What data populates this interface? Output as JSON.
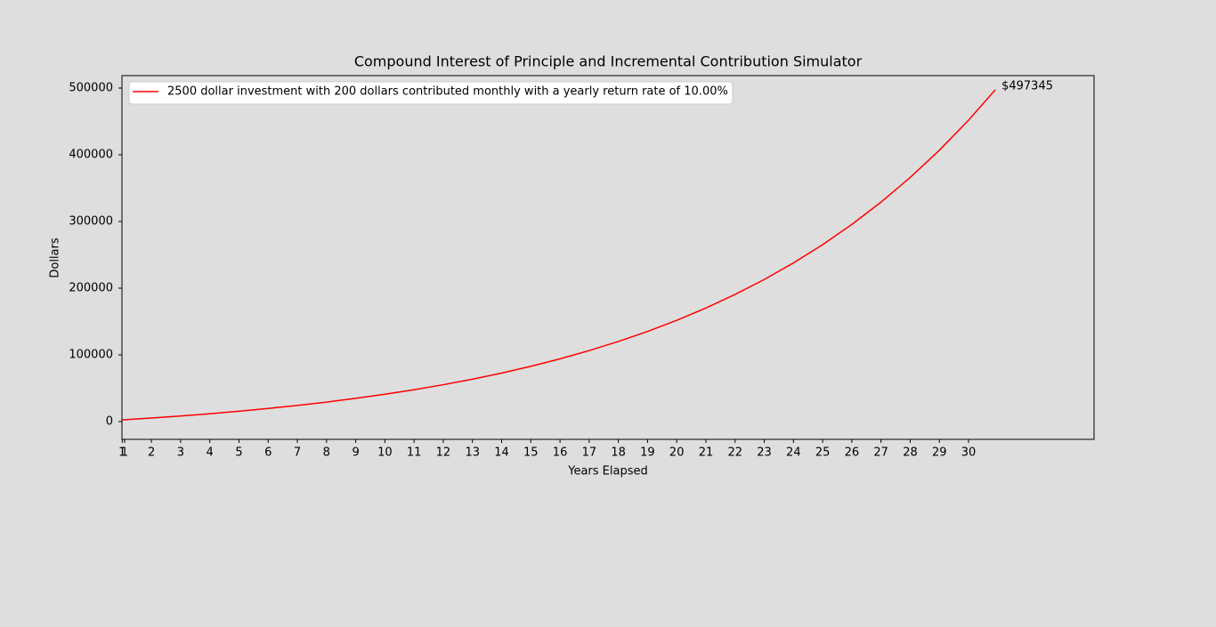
{
  "chart_data": {
    "type": "line",
    "title": "Compound Interest of  Principle and Incremental Contribution Simulator",
    "x_label": "Years Elapsed",
    "y_label": "Dollars",
    "x": [
      1,
      2,
      3,
      4,
      5,
      6,
      7,
      8,
      9,
      10,
      11,
      12,
      13,
      14,
      15,
      16,
      17,
      18,
      19,
      20,
      21,
      22,
      23,
      24,
      25,
      26,
      27,
      28,
      29,
      30,
      30.917
    ],
    "series": [
      {
        "name": "2500 dollar investment with 200 dollars contributed monthly with a yearly return rate of 10.00%",
        "color": "#ff0000",
        "values": [
          2500,
          5275,
          8340,
          11726,
          15467,
          19600,
          24166,
          29210,
          34781,
          40937,
          47737,
          55248,
          63547,
          72714,
          82841,
          94029,
          106388,
          120042,
          135125,
          151787,
          170194,
          190529,
          212993,
          237809,
          265223,
          295508,
          328966,
          365925,
          406756,
          451862,
          497345
        ]
      }
    ],
    "annotation": "$497345",
    "xlim": [
      0.99,
      34.3
    ],
    "ylim": [
      -26667,
      518667
    ],
    "xticks": [
      1,
      {
        "value": 1.08,
        "label": "1"
      },
      2,
      3,
      4,
      5,
      6,
      7,
      8,
      9,
      10,
      11,
      12,
      13,
      14,
      15,
      16,
      17,
      18,
      19,
      20,
      21,
      22,
      23,
      24,
      25,
      26,
      27,
      28,
      29,
      30
    ],
    "yticks": [
      0,
      100000,
      200000,
      300000,
      400000,
      500000
    ],
    "legend": "upper left"
  }
}
